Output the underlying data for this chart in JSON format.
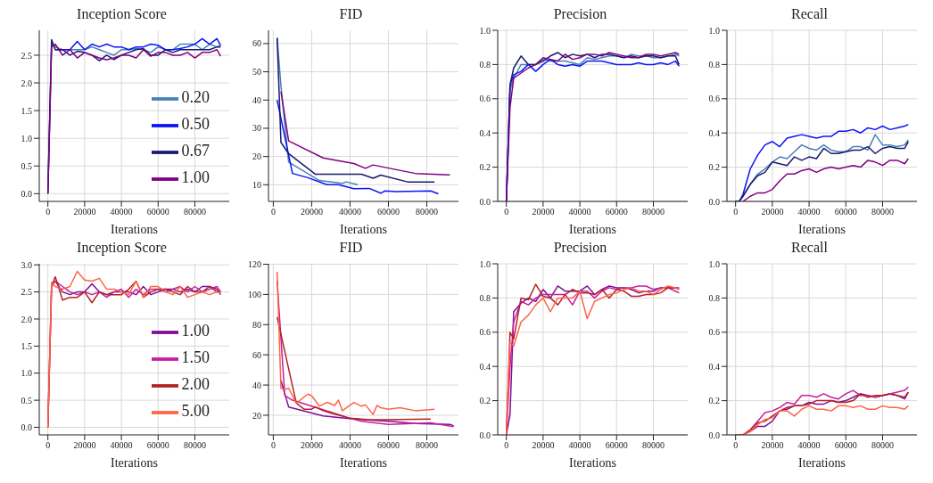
{
  "chart_data": [
    {
      "type": "line",
      "title": "Inception Score",
      "xlabel": "Iterations",
      "x": [
        0,
        2000,
        4000,
        8000,
        12000,
        16000,
        20000,
        24000,
        28000,
        32000,
        36000,
        40000,
        44000,
        48000,
        52000,
        56000,
        60000,
        64000,
        68000,
        72000,
        76000,
        80000,
        84000,
        88000,
        92000,
        94000
      ],
      "xlim": [
        -4700,
        98700
      ],
      "xticks": [
        0,
        20000,
        40000,
        60000,
        80000
      ],
      "ylim": [
        -0.14,
        2.95
      ],
      "yticks": [
        {
          "value": 0,
          "label": "0.0"
        },
        {
          "value": 0.5,
          "label": "0.5"
        },
        {
          "value": 1,
          "label": "1.0"
        },
        {
          "value": 1.5,
          "label": "1.5"
        },
        {
          "value": 2,
          "label": "2.0"
        },
        {
          "value": 2.5,
          "label": "2.5"
        }
      ],
      "grid": true,
      "legend": "bottom right",
      "series": [
        {
          "name": "0.20",
          "color": "#4682b4",
          "values": [
            0,
            2.7,
            2.65,
            2.6,
            2.6,
            2.6,
            2.6,
            2.65,
            2.6,
            2.55,
            2.5,
            2.6,
            2.6,
            2.62,
            2.6,
            2.55,
            2.65,
            2.6,
            2.6,
            2.7,
            2.7,
            2.7,
            2.6,
            2.7,
            2.65,
            2.68
          ]
        },
        {
          "name": "0.50",
          "color": "#0a14f5",
          "values": [
            null,
            null,
            2.6,
            2.6,
            2.6,
            2.75,
            2.6,
            2.7,
            2.65,
            2.7,
            2.65,
            2.65,
            2.6,
            2.65,
            2.65,
            2.7,
            2.68,
            2.6,
            2.6,
            2.62,
            2.65,
            2.7,
            2.8,
            2.7,
            2.8,
            2.68
          ]
        },
        {
          "name": "0.67",
          "color": "#191970",
          "values": [
            0,
            2.78,
            2.6,
            2.6,
            2.5,
            2.57,
            2.55,
            2.5,
            2.4,
            2.5,
            2.42,
            2.5,
            2.55,
            2.6,
            2.62,
            2.5,
            2.5,
            2.6,
            2.55,
            2.6,
            2.6,
            2.6,
            2.6,
            2.6,
            2.65,
            2.65
          ]
        },
        {
          "name": "1.00",
          "color": "#800080",
          "values": [
            0,
            2.65,
            2.7,
            2.5,
            2.6,
            2.45,
            2.55,
            2.5,
            2.45,
            2.42,
            2.45,
            2.5,
            2.5,
            2.45,
            2.6,
            2.48,
            2.55,
            2.55,
            2.5,
            2.5,
            2.55,
            2.45,
            2.55,
            2.55,
            2.6,
            2.48
          ]
        }
      ]
    },
    {
      "type": "line",
      "title": "FID",
      "xlabel": "Iterations",
      "xlim": [
        -2500,
        96500
      ],
      "xticks": [
        0,
        20000,
        40000,
        60000,
        80000
      ],
      "ylim": [
        4.1,
        64.7
      ],
      "yticks": [
        10,
        20,
        30,
        40,
        50,
        60
      ],
      "grid": true,
      "series": [
        {
          "color": "#4682b4",
          "x": [
            2000,
            4000,
            8000,
            24000,
            36000,
            38000,
            44000
          ],
          "values": [
            62,
            45,
            18,
            11.5,
            10.5,
            11,
            10
          ]
        },
        {
          "color": "#0a14f5",
          "x": [
            2000,
            10000,
            18000,
            28000,
            34000,
            42000,
            50000,
            56000,
            58000,
            64000,
            82000,
            86000
          ],
          "values": [
            40,
            14,
            12.5,
            10,
            10,
            8.6,
            8.7,
            7,
            7.8,
            7.6,
            7.8,
            6.8
          ]
        },
        {
          "color": "#191970",
          "x": [
            2000,
            4000,
            8000,
            22000,
            46000,
            52000,
            56000,
            70000,
            84000
          ],
          "values": [
            62,
            25,
            21,
            13.7,
            13.7,
            12.3,
            13.4,
            11,
            11
          ]
        },
        {
          "color": "#800080",
          "x": [
            4000,
            8000,
            26000,
            42000,
            48000,
            52000,
            74000,
            92000
          ],
          "values": [
            43,
            25.5,
            19.5,
            17.5,
            15.8,
            17,
            14,
            13.5
          ]
        }
      ]
    },
    {
      "type": "line",
      "title": "Precision",
      "xlabel": "Iterations",
      "x": [
        0,
        2000,
        4000,
        8000,
        12000,
        16000,
        20000,
        24000,
        28000,
        32000,
        36000,
        40000,
        44000,
        48000,
        52000,
        56000,
        60000,
        64000,
        68000,
        72000,
        76000,
        80000,
        84000,
        88000,
        92000,
        94000
      ],
      "xlim": [
        -4700,
        98700
      ],
      "xticks": [
        0,
        20000,
        40000,
        60000,
        80000
      ],
      "ylim": [
        0,
        1
      ],
      "yticks": [
        {
          "value": 0,
          "label": "0.0"
        },
        {
          "value": 0.2,
          "label": "0.2"
        },
        {
          "value": 0.4,
          "label": "0.4"
        },
        {
          "value": 0.6,
          "label": "0.6"
        },
        {
          "value": 0.8,
          "label": "0.8"
        },
        {
          "value": 1,
          "label": "1.0"
        }
      ],
      "grid": true,
      "series": [
        {
          "color": "#4682b4",
          "values": [
            0,
            0.65,
            0.72,
            0.8,
            0.8,
            0.8,
            0.83,
            0.82,
            0.82,
            0.82,
            0.81,
            0.8,
            0.84,
            0.83,
            0.84,
            0.85,
            0.85,
            0.84,
            0.86,
            0.85,
            0.85,
            0.84,
            0.84,
            0.85,
            0.86,
            0.85
          ]
        },
        {
          "color": "#0a14f5",
          "values": [
            0,
            0.68,
            0.74,
            0.76,
            0.8,
            0.76,
            0.8,
            0.83,
            0.8,
            0.79,
            0.8,
            0.79,
            0.82,
            0.82,
            0.82,
            0.81,
            0.8,
            0.8,
            0.8,
            0.81,
            0.8,
            0.8,
            0.81,
            0.8,
            0.82,
            0.79
          ]
        },
        {
          "color": "#191970",
          "values": [
            0,
            0.68,
            0.78,
            0.85,
            0.8,
            0.8,
            0.82,
            0.85,
            0.87,
            0.84,
            0.86,
            0.85,
            0.86,
            0.84,
            0.86,
            0.86,
            0.85,
            0.84,
            0.85,
            0.84,
            0.85,
            0.85,
            0.84,
            0.85,
            0.85,
            0.8
          ]
        },
        {
          "color": "#800080",
          "values": [
            0,
            0.55,
            0.72,
            0.75,
            0.78,
            0.8,
            0.84,
            0.83,
            0.82,
            0.86,
            0.83,
            0.84,
            0.86,
            0.86,
            0.85,
            0.87,
            0.86,
            0.85,
            0.84,
            0.84,
            0.86,
            0.86,
            0.85,
            0.86,
            0.87,
            0.86
          ]
        }
      ]
    },
    {
      "type": "line",
      "title": "Recall",
      "xlabel": "Iterations",
      "x": [
        0,
        2000,
        4000,
        8000,
        12000,
        16000,
        20000,
        24000,
        28000,
        32000,
        36000,
        40000,
        44000,
        48000,
        52000,
        56000,
        60000,
        64000,
        68000,
        72000,
        76000,
        80000,
        84000,
        88000,
        92000,
        94000
      ],
      "xlim": [
        -4700,
        98700
      ],
      "xticks": [
        0,
        20000,
        40000,
        60000,
        80000
      ],
      "ylim": [
        0,
        1
      ],
      "yticks": [
        {
          "value": 0,
          "label": "0.0"
        },
        {
          "value": 0.2,
          "label": "0.2"
        },
        {
          "value": 0.4,
          "label": "0.4"
        },
        {
          "value": 0.6,
          "label": "0.6"
        },
        {
          "value": 0.8,
          "label": "0.8"
        },
        {
          "value": 1,
          "label": "1.0"
        }
      ],
      "grid": true,
      "series": [
        {
          "color": "#4682b4",
          "values": [
            0,
            0,
            0.03,
            0.1,
            0.16,
            0.19,
            0.23,
            0.26,
            0.25,
            0.29,
            0.33,
            0.31,
            0.3,
            0.33,
            0.3,
            0.29,
            0.29,
            0.32,
            0.32,
            0.3,
            0.39,
            0.33,
            0.33,
            0.32,
            0.33,
            0.36
          ]
        },
        {
          "color": "#0a14f5",
          "values": [
            0,
            0,
            0.04,
            0.19,
            0.27,
            0.33,
            0.35,
            0.32,
            0.37,
            0.38,
            0.39,
            0.38,
            0.37,
            0.38,
            0.38,
            0.41,
            0.41,
            0.42,
            0.4,
            0.43,
            0.42,
            0.44,
            0.42,
            0.43,
            0.44,
            0.45
          ]
        },
        {
          "color": "#191970",
          "values": [
            0,
            0,
            0.03,
            0.1,
            0.15,
            0.17,
            0.23,
            0.22,
            0.21,
            0.26,
            0.24,
            0.26,
            0.25,
            0.31,
            0.28,
            0.28,
            0.29,
            0.3,
            0.3,
            0.32,
            0.28,
            0.31,
            0.32,
            0.31,
            0.31,
            0.35
          ]
        },
        {
          "color": "#800080",
          "values": [
            null,
            null,
            0,
            0.03,
            0.05,
            0.05,
            0.07,
            0.12,
            0.16,
            0.16,
            0.18,
            0.19,
            0.17,
            0.19,
            0.2,
            0.19,
            0.2,
            0.21,
            0.2,
            0.24,
            0.23,
            0.21,
            0.24,
            0.24,
            0.22,
            0.25
          ]
        }
      ]
    },
    {
      "type": "line",
      "title": "Inception Score",
      "xlabel": "Iterations",
      "x": [
        0,
        2000,
        4000,
        8000,
        12000,
        16000,
        20000,
        24000,
        28000,
        32000,
        36000,
        40000,
        44000,
        48000,
        52000,
        56000,
        60000,
        64000,
        68000,
        72000,
        76000,
        80000,
        84000,
        88000,
        92000,
        94000
      ],
      "xlim": [
        -4700,
        98700
      ],
      "xticks": [
        0,
        20000,
        40000,
        60000,
        80000
      ],
      "ylim": [
        -0.14,
        3.02
      ],
      "yticks": [
        {
          "value": 0,
          "label": "0.0"
        },
        {
          "value": 0.5,
          "label": "0.5"
        },
        {
          "value": 1,
          "label": "1.0"
        },
        {
          "value": 1.5,
          "label": "1.5"
        },
        {
          "value": 2,
          "label": "2.0"
        },
        {
          "value": 2.5,
          "label": "2.5"
        },
        {
          "value": 3,
          "label": "3.0"
        }
      ],
      "grid": true,
      "legend": "bottom right",
      "series": [
        {
          "name": "1.00",
          "color": "#800d99",
          "values": [
            null,
            null,
            2.7,
            2.5,
            2.45,
            2.5,
            2.5,
            2.65,
            2.5,
            2.45,
            2.5,
            2.5,
            2.5,
            2.45,
            2.6,
            2.45,
            2.5,
            2.55,
            2.55,
            2.5,
            2.55,
            2.5,
            2.6,
            2.6,
            2.55,
            2.45
          ]
        },
        {
          "name": "1.50",
          "color": "#c71e9e",
          "values": [
            0,
            2.6,
            2.7,
            2.6,
            2.5,
            2.45,
            2.5,
            2.45,
            2.5,
            2.4,
            2.5,
            2.55,
            2.4,
            2.55,
            2.45,
            2.55,
            2.55,
            2.5,
            2.55,
            2.6,
            2.5,
            2.6,
            2.5,
            2.55,
            2.6,
            2.5
          ]
        },
        {
          "name": "2.00",
          "color": "#b22222",
          "values": [
            0,
            2.6,
            2.78,
            2.35,
            2.4,
            2.4,
            2.5,
            2.3,
            2.5,
            2.45,
            2.45,
            2.45,
            2.55,
            2.7,
            2.4,
            2.5,
            2.55,
            2.55,
            2.5,
            2.45,
            2.6,
            2.5,
            2.5,
            2.6,
            2.5,
            2.52
          ]
        },
        {
          "name": "5.00",
          "color": "#ff6347",
          "values": [
            0,
            2.68,
            2.6,
            2.55,
            2.6,
            2.88,
            2.72,
            2.7,
            2.75,
            2.55,
            2.55,
            2.5,
            2.45,
            2.7,
            2.4,
            2.6,
            2.6,
            2.5,
            2.45,
            2.6,
            2.4,
            2.45,
            2.5,
            2.45,
            2.5,
            2.48
          ]
        }
      ]
    },
    {
      "type": "line",
      "title": "FID",
      "xlabel": "Iterations",
      "xlim": [
        -2500,
        96500
      ],
      "xticks": [
        0,
        20000,
        40000,
        60000,
        80000
      ],
      "ylim": [
        7,
        120.3
      ],
      "yticks": [
        20,
        40,
        60,
        80,
        100,
        120
      ],
      "grid": true,
      "series": [
        {
          "color": "#800d99",
          "x": [
            4000,
            8000,
            26000,
            42000,
            62000,
            74000,
            92000,
            94000
          ],
          "values": [
            43,
            25.5,
            19.5,
            17.5,
            15.8,
            14.5,
            14,
            13
          ]
        },
        {
          "color": "#c71e9e",
          "x": [
            2000,
            6000,
            10000,
            30000,
            40000,
            46000,
            60000,
            82000,
            94000
          ],
          "values": [
            109,
            33,
            30,
            22,
            18,
            16,
            14,
            15,
            12.5
          ]
        },
        {
          "color": "#b22222",
          "x": [
            2000,
            12000,
            16000,
            20000,
            22000,
            26000,
            30000,
            40000,
            50000,
            56000,
            82000
          ],
          "values": [
            85,
            28,
            24,
            24,
            25.5,
            23,
            21.5,
            18,
            17,
            17,
            17.5
          ]
        },
        {
          "color": "#ff6347",
          "x": [
            2000,
            4000,
            6000,
            8000,
            12000,
            18000,
            20000,
            24000,
            28000,
            32000,
            34000,
            36000,
            42000,
            46000,
            48000,
            52000,
            54000,
            56000,
            60000,
            66000,
            74000,
            84000
          ],
          "values": [
            115,
            38,
            37,
            38,
            28,
            34,
            33,
            26,
            28.5,
            26.5,
            30,
            23,
            28.5,
            26,
            27,
            20.5,
            26.5,
            25,
            24,
            25,
            23,
            24
          ]
        }
      ]
    },
    {
      "type": "line",
      "title": "Precision",
      "xlabel": "Iterations",
      "x": [
        0,
        2000,
        4000,
        8000,
        12000,
        16000,
        20000,
        24000,
        28000,
        32000,
        36000,
        40000,
        44000,
        48000,
        52000,
        56000,
        60000,
        64000,
        68000,
        72000,
        76000,
        80000,
        84000,
        88000,
        92000,
        94000
      ],
      "xlim": [
        -4700,
        98700
      ],
      "xticks": [
        0,
        20000,
        40000,
        60000,
        80000
      ],
      "ylim": [
        0,
        1
      ],
      "yticks": [
        {
          "value": 0,
          "label": "0.0"
        },
        {
          "value": 0.2,
          "label": "0.2"
        },
        {
          "value": 0.4,
          "label": "0.4"
        },
        {
          "value": 0.6,
          "label": "0.6"
        },
        {
          "value": 0.8,
          "label": "0.8"
        },
        {
          "value": 1,
          "label": "1.0"
        }
      ],
      "grid": true,
      "series": [
        {
          "color": "#800d99",
          "values": [
            0,
            0.12,
            0.72,
            0.77,
            0.8,
            0.78,
            0.85,
            0.8,
            0.87,
            0.84,
            0.84,
            0.84,
            0.87,
            0.82,
            0.85,
            0.87,
            0.86,
            0.86,
            0.85,
            0.83,
            0.84,
            0.84,
            0.86,
            0.86,
            0.86,
            0.86
          ]
        },
        {
          "color": "#c71e9e",
          "values": [
            0,
            0.4,
            0.66,
            0.78,
            0.76,
            0.8,
            0.82,
            0.82,
            0.82,
            0.82,
            0.76,
            0.84,
            0.84,
            0.8,
            0.84,
            0.86,
            0.85,
            0.86,
            0.86,
            0.87,
            0.87,
            0.85,
            0.86,
            0.86,
            0.84,
            0.83
          ]
        },
        {
          "color": "#b22222",
          "values": [
            0,
            0.6,
            0.56,
            0.8,
            0.79,
            0.88,
            0.81,
            0.8,
            0.76,
            0.82,
            0.85,
            0.83,
            0.83,
            0.82,
            0.85,
            0.8,
            0.85,
            0.84,
            0.81,
            0.81,
            0.82,
            0.82,
            0.83,
            0.86,
            0.86,
            0.85
          ]
        },
        {
          "color": "#ff6347",
          "values": [
            0,
            0.54,
            0.52,
            0.66,
            0.7,
            0.76,
            0.8,
            0.72,
            0.8,
            0.8,
            0.8,
            0.84,
            0.68,
            0.78,
            0.8,
            0.82,
            0.83,
            0.85,
            0.86,
            0.84,
            0.84,
            0.82,
            0.85,
            0.87,
            0.86,
            0.85
          ]
        }
      ]
    },
    {
      "type": "line",
      "title": "Recall",
      "xlabel": "Iterations",
      "x": [
        0,
        2000,
        4000,
        8000,
        12000,
        16000,
        20000,
        24000,
        28000,
        32000,
        36000,
        40000,
        44000,
        48000,
        52000,
        56000,
        60000,
        64000,
        68000,
        72000,
        76000,
        80000,
        84000,
        88000,
        92000,
        94000
      ],
      "xlim": [
        -4700,
        98700
      ],
      "xticks": [
        0,
        20000,
        40000,
        60000,
        80000
      ],
      "ylim": [
        0,
        1
      ],
      "yticks": [
        {
          "value": 0,
          "label": "0.0"
        },
        {
          "value": 0.2,
          "label": "0.2"
        },
        {
          "value": 0.4,
          "label": "0.4"
        },
        {
          "value": 0.6,
          "label": "0.6"
        },
        {
          "value": 0.8,
          "label": "0.8"
        },
        {
          "value": 1,
          "label": "1.0"
        }
      ],
      "grid": true,
      "series": [
        {
          "color": "#800d99",
          "values": [
            null,
            null,
            0,
            0.02,
            0.05,
            0.05,
            0.08,
            0.14,
            0.15,
            0.17,
            0.17,
            0.19,
            0.18,
            0.18,
            0.2,
            0.19,
            0.2,
            0.22,
            0.24,
            0.23,
            0.22,
            0.23,
            0.24,
            0.23,
            0.21,
            0.25
          ]
        },
        {
          "color": "#c71e9e",
          "values": [
            null,
            null,
            0,
            0.03,
            0.08,
            0.13,
            0.14,
            0.16,
            0.19,
            0.18,
            0.23,
            0.23,
            0.22,
            0.24,
            0.22,
            0.21,
            0.24,
            0.26,
            0.23,
            0.23,
            0.22,
            0.23,
            0.24,
            0.25,
            0.26,
            0.28
          ]
        },
        {
          "color": "#b22222",
          "values": [
            0,
            0,
            0,
            0.03,
            0.07,
            0.08,
            0.11,
            0.14,
            0.16,
            0.17,
            0.17,
            0.18,
            0.2,
            0.2,
            0.2,
            0.19,
            0.19,
            0.2,
            0.24,
            0.22,
            0.23,
            0.23,
            0.24,
            0.23,
            0.22,
            0.25
          ]
        },
        {
          "color": "#ff6347",
          "values": [
            0,
            0,
            0,
            0.02,
            0.06,
            0.09,
            0.1,
            0.14,
            0.14,
            0.11,
            0.15,
            0.17,
            0.15,
            0.15,
            0.14,
            0.17,
            0.17,
            0.16,
            0.17,
            0.15,
            0.15,
            0.17,
            0.16,
            0.16,
            0.15,
            0.17
          ]
        }
      ]
    }
  ]
}
